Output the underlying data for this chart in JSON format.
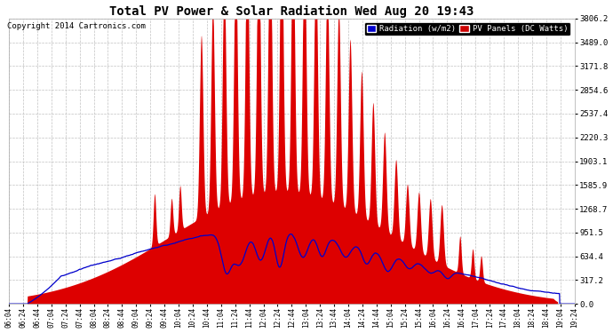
{
  "title": "Total PV Power & Solar Radiation Wed Aug 20 19:43",
  "copyright": "Copyright 2014 Cartronics.com",
  "background_color": "#ffffff",
  "plot_bg_color": "#ffffff",
  "grid_color": "#bbbbbb",
  "y_ticks": [
    0.0,
    317.2,
    634.4,
    951.5,
    1268.7,
    1585.9,
    1903.1,
    2220.3,
    2537.4,
    2854.6,
    3171.8,
    3489.0,
    3806.2
  ],
  "y_max": 3806.2,
  "legend_radiation_label": "Radiation (w/m2)",
  "legend_pv_label": "PV Panels (DC Watts)",
  "legend_radiation_color": "#0000cc",
  "legend_pv_color": "#cc0000",
  "radiation_line_color": "#0000cc",
  "pv_fill_color": "#dd0000",
  "pv_line_color": "#cc0000",
  "x_tick_labels": [
    "06:04",
    "06:24",
    "06:44",
    "07:04",
    "07:24",
    "07:44",
    "08:04",
    "08:24",
    "08:44",
    "09:04",
    "09:24",
    "09:44",
    "10:04",
    "10:24",
    "10:44",
    "11:04",
    "11:24",
    "11:44",
    "12:04",
    "12:24",
    "12:44",
    "13:04",
    "13:24",
    "13:44",
    "14:04",
    "14:24",
    "14:44",
    "15:04",
    "15:24",
    "15:44",
    "16:04",
    "16:24",
    "16:44",
    "17:04",
    "17:24",
    "17:44",
    "18:04",
    "18:24",
    "18:44",
    "19:04",
    "19:24"
  ]
}
